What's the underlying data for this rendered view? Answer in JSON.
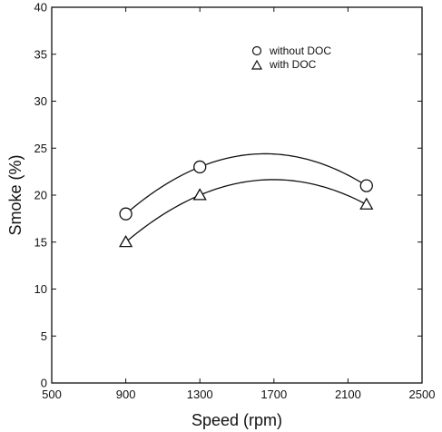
{
  "chart_data": {
    "type": "line",
    "xlabel": "Speed  (rpm)",
    "ylabel": "Smoke  (%)",
    "xlim": [
      500,
      2500
    ],
    "ylim": [
      0,
      40
    ],
    "xticks": [
      500,
      900,
      1300,
      1700,
      2100,
      2500
    ],
    "yticks": [
      0,
      5,
      10,
      15,
      20,
      25,
      30,
      35,
      40
    ],
    "grid": false,
    "legend_position": "top-right",
    "series": [
      {
        "name": "without  DOC",
        "marker": "circle",
        "color": "#111111",
        "x": [
          900,
          1300,
          2200
        ],
        "y": [
          18,
          23,
          21
        ]
      },
      {
        "name": "with  DOC",
        "marker": "triangle",
        "color": "#111111",
        "x": [
          900,
          1300,
          2200
        ],
        "y": [
          15,
          20,
          19
        ]
      }
    ]
  }
}
